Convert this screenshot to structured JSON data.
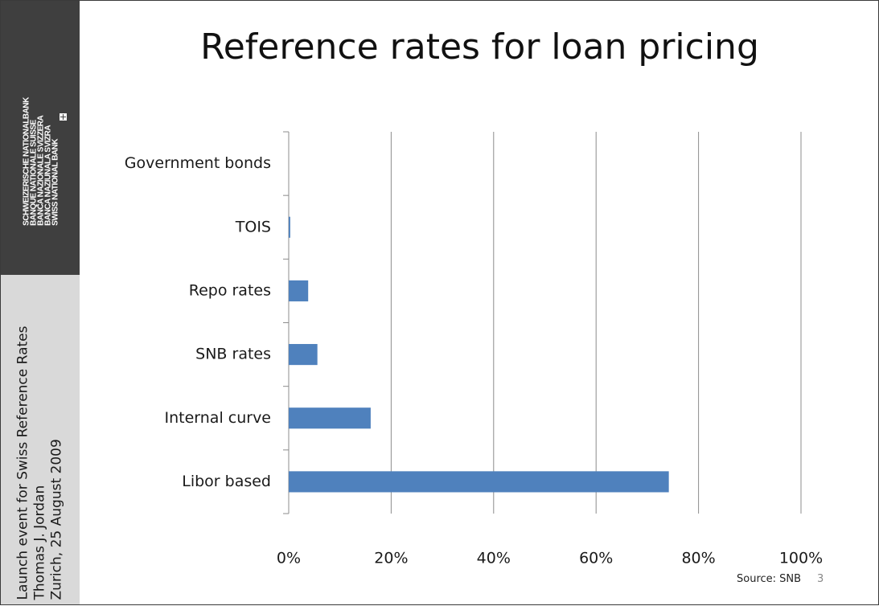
{
  "slide": {
    "title": "Reference rates for loan pricing",
    "source": "Source: SNB",
    "page_number": "3"
  },
  "sidebar": {
    "logo_lines": [
      "SCHWEIZERISCHE NATIONALBANK",
      "BANQUE NATIONALE SUISSE",
      "BANCA NAZIONALE SVIZZERA",
      "BANCA NAZIUNALA SVIZRA",
      "SWISS NATIONAL BANK"
    ],
    "info_lines": [
      "Launch event for Swiss Reference Rates",
      "Thomas J. Jordan",
      "Zurich, 25 August 2009"
    ]
  },
  "colors": {
    "bar": "#4f81bd",
    "grid": "#8c8c8c",
    "sidebar_dark": "#3f3f3f",
    "sidebar_light": "#d9d9d9"
  },
  "chart_data": {
    "type": "bar",
    "orientation": "horizontal",
    "categories": [
      "Government bonds",
      "TOIS",
      "Repo rates",
      "SNB rates",
      "Internal curve",
      "Libor based"
    ],
    "values": [
      0,
      0.3,
      3.8,
      5.6,
      16,
      74.2
    ],
    "x_ticks": [
      "0%",
      "20%",
      "40%",
      "60%",
      "80%",
      "100%"
    ],
    "xlim": [
      0,
      100
    ],
    "grid": true
  }
}
